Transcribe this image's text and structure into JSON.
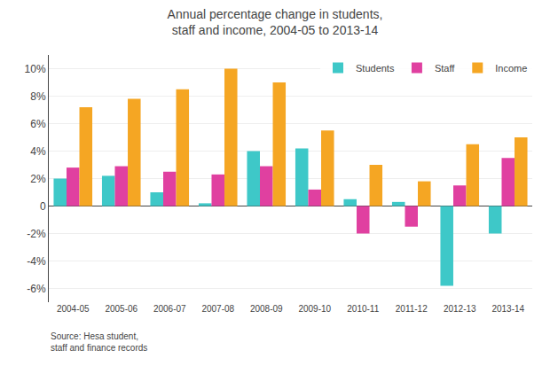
{
  "chart_data": {
    "type": "bar",
    "title": "Annual percentage change in students,\nstaff and income, 2004-05 to 2013-14",
    "annotations": [
      "Source: Hesa student,\nstaff and finance records"
    ],
    "categories": [
      "2004-05",
      "2005-06",
      "2006-07",
      "2007-08",
      "2008-09",
      "2009-10",
      "2010-11",
      "2011-12",
      "2012-13",
      "2013-14"
    ],
    "series": [
      {
        "name": "Students",
        "color": "#3ec8c8",
        "values": [
          2.0,
          2.2,
          1.0,
          0.2,
          4.0,
          4.2,
          0.5,
          0.3,
          -5.8,
          -2.0
        ]
      },
      {
        "name": "Staff",
        "color": "#e040a0",
        "values": [
          2.8,
          2.9,
          2.5,
          2.3,
          2.9,
          1.2,
          -2.0,
          -1.5,
          1.5,
          3.5
        ]
      },
      {
        "name": "Income",
        "color": "#f5a623",
        "values": [
          7.2,
          7.8,
          8.5,
          10.0,
          9.0,
          5.5,
          3.0,
          1.8,
          4.5,
          5.0
        ]
      }
    ],
    "ylim": [
      -7,
      11
    ],
    "yticks": [
      {
        "value": -6,
        "label": "-6%"
      },
      {
        "value": -4,
        "label": "-4%"
      },
      {
        "value": -2,
        "label": "-2%"
      },
      0,
      {
        "value": 2,
        "label": "2%"
      },
      {
        "value": 4,
        "label": "4%"
      },
      {
        "value": 6,
        "label": "6%"
      },
      {
        "value": 8,
        "label": "8%"
      },
      {
        "value": 10,
        "label": "10%"
      }
    ],
    "grid": true,
    "legend": "upper right"
  }
}
